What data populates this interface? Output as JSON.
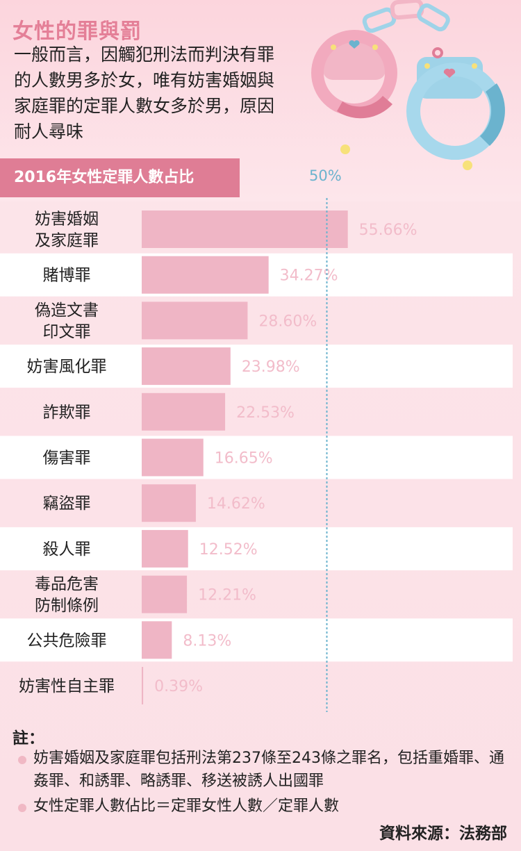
{
  "header": {
    "title": "女性的罪與罰",
    "intro": "一般而言，因觸犯刑法而判決有罪的人數男多於女，唯有妨害婚姻與家庭罪的定罪人數女多於男，原因耐人尋味"
  },
  "chart_tag": "2016年女性定罪人數占比",
  "reference_label": "50%",
  "chart_data": {
    "type": "bar",
    "orientation": "horizontal",
    "title": "2016年女性定罪人數占比",
    "categories": [
      [
        "妨害婚姻",
        "及家庭罪"
      ],
      [
        "賭博罪"
      ],
      [
        "偽造文書",
        "印文罪"
      ],
      [
        "妨害風化罪"
      ],
      [
        "詐欺罪"
      ],
      [
        "傷害罪"
      ],
      [
        "竊盜罪"
      ],
      [
        "殺人罪"
      ],
      [
        "毒品危害",
        "防制條例"
      ],
      [
        "公共危險罪"
      ],
      [
        "妨害性自主罪"
      ]
    ],
    "values": [
      55.66,
      34.27,
      28.6,
      23.98,
      22.53,
      16.65,
      14.62,
      12.52,
      12.21,
      8.13,
      0.39
    ],
    "value_labels": [
      "55.66%",
      "34.27%",
      "28.60%",
      "23.98%",
      "22.53%",
      "16.65%",
      "14.62%",
      "12.52%",
      "12.21%",
      "8.13%",
      "0.39%"
    ],
    "reference_line": 50,
    "bar_color": "#efb5c5",
    "label_color": "#f2bcca",
    "reference_color": "#6bb3ce"
  },
  "notes": {
    "heading": "註：",
    "items": [
      "妨害婚姻及家庭罪包括刑法第237條至243條之罪名，包括重婚罪、通姦罪、和誘罪、略誘罪、移送被誘人出國罪",
      "女性定罪人數佔比＝定罪女性人數／定罪人數"
    ],
    "source": "資料來源：法務部"
  }
}
